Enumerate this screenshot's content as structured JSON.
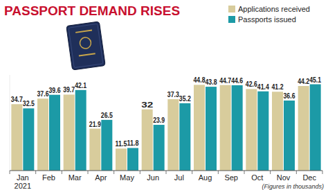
{
  "chart_data": {
    "type": "bar",
    "title": "PASSPORT DEMAND RISES",
    "categories": [
      "Jan",
      "Feb",
      "Mar",
      "Apr",
      "May",
      "Jun",
      "Jul",
      "Aug",
      "Sep",
      "Oct",
      "Nov",
      "Dec"
    ],
    "x_label": "2021",
    "note": "(Figures in thousands)",
    "series": [
      {
        "name": "Applications received",
        "color": "#d8cc9c",
        "values": [
          34.7,
          37.6,
          39.7,
          21.9,
          11.5,
          32,
          37.3,
          44.8,
          44.7,
          42.6,
          41.2,
          44.2
        ]
      },
      {
        "name": "Passports issued",
        "color": "#1c9aa6",
        "values": [
          32.5,
          39.6,
          42.1,
          26.5,
          11.8,
          23.9,
          35.2,
          43.8,
          44.6,
          41.4,
          36.6,
          45.1
        ]
      }
    ],
    "ylim": [
      0,
      50
    ],
    "tick_labels": "x",
    "data_labels": true,
    "legend": "top-right",
    "grid": false
  }
}
